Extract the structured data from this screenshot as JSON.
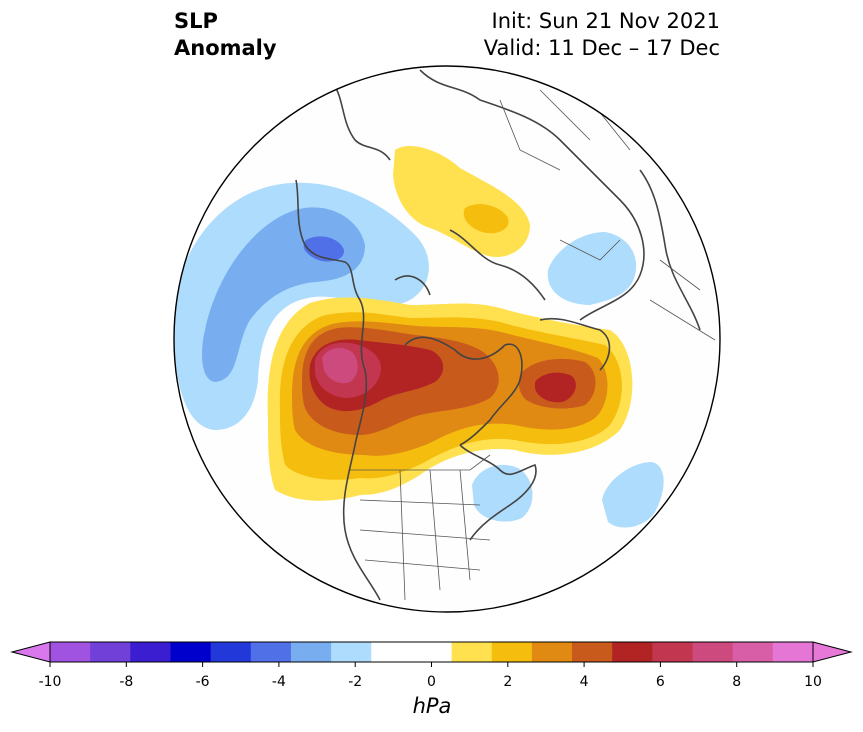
{
  "title": {
    "left_line1": "SLP",
    "left_line2": "Anomaly",
    "right_line1": "Init: Sun 21 Nov 2021",
    "right_line2": "Valid: 11 Dec – 17 Dec"
  },
  "map": {
    "projection": "north-polar-stereographic",
    "field": "sea-level-pressure-anomaly",
    "features": [
      "coastlines",
      "country-borders",
      "us-state-borders"
    ]
  },
  "colorbar": {
    "unit": "hPa",
    "ticks": [
      "-10",
      "-8",
      "-6",
      "-4",
      "-2",
      "0",
      "2",
      "4",
      "6",
      "8",
      "10"
    ],
    "levels": [
      -10,
      -9,
      -8,
      -7,
      -6,
      -5,
      -4,
      -3,
      -2,
      -1,
      1,
      2,
      3,
      4,
      5,
      6,
      7,
      8,
      9,
      10
    ],
    "colors": [
      "#a052e0",
      "#7040d8",
      "#3a1ed0",
      "#0000cc",
      "#2238d8",
      "#5070e8",
      "#78aef0",
      "#aedcfc",
      "#ffffff",
      "#ffffff",
      "#ffe14f",
      "#f5bd0e",
      "#e08a14",
      "#c85a1c",
      "#b22424",
      "#c23650",
      "#cc4a7e",
      "#d85ea8",
      "#e676d6"
    ],
    "under_color": "#d878ec",
    "over_color": "#e878d8"
  }
}
